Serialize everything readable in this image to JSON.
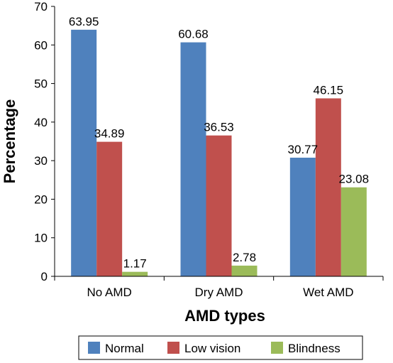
{
  "chart_data": {
    "type": "bar",
    "categories": [
      "No AMD",
      "Dry AMD",
      "Wet AMD"
    ],
    "series": [
      {
        "name": "Normal",
        "values": [
          63.95,
          60.68,
          30.77
        ],
        "color": "#4F81BD"
      },
      {
        "name": "Low vision",
        "values": [
          34.89,
          36.53,
          46.15
        ],
        "color": "#C0504D"
      },
      {
        "name": "Blindness",
        "values": [
          1.17,
          2.78,
          23.08
        ],
        "color": "#9BBB59"
      }
    ],
    "data_labels": [
      [
        "63.95",
        "34.89",
        "1.17"
      ],
      [
        "60.68",
        "36.53",
        "2.78"
      ],
      [
        "30.77",
        "46.15",
        "23.08"
      ]
    ],
    "xlabel": "AMD types",
    "ylabel": "Percentage",
    "ylim": [
      0,
      70
    ],
    "yticks": [
      0,
      10,
      20,
      30,
      40,
      50,
      60,
      70
    ],
    "grid": false,
    "legend_position": "bottom"
  }
}
